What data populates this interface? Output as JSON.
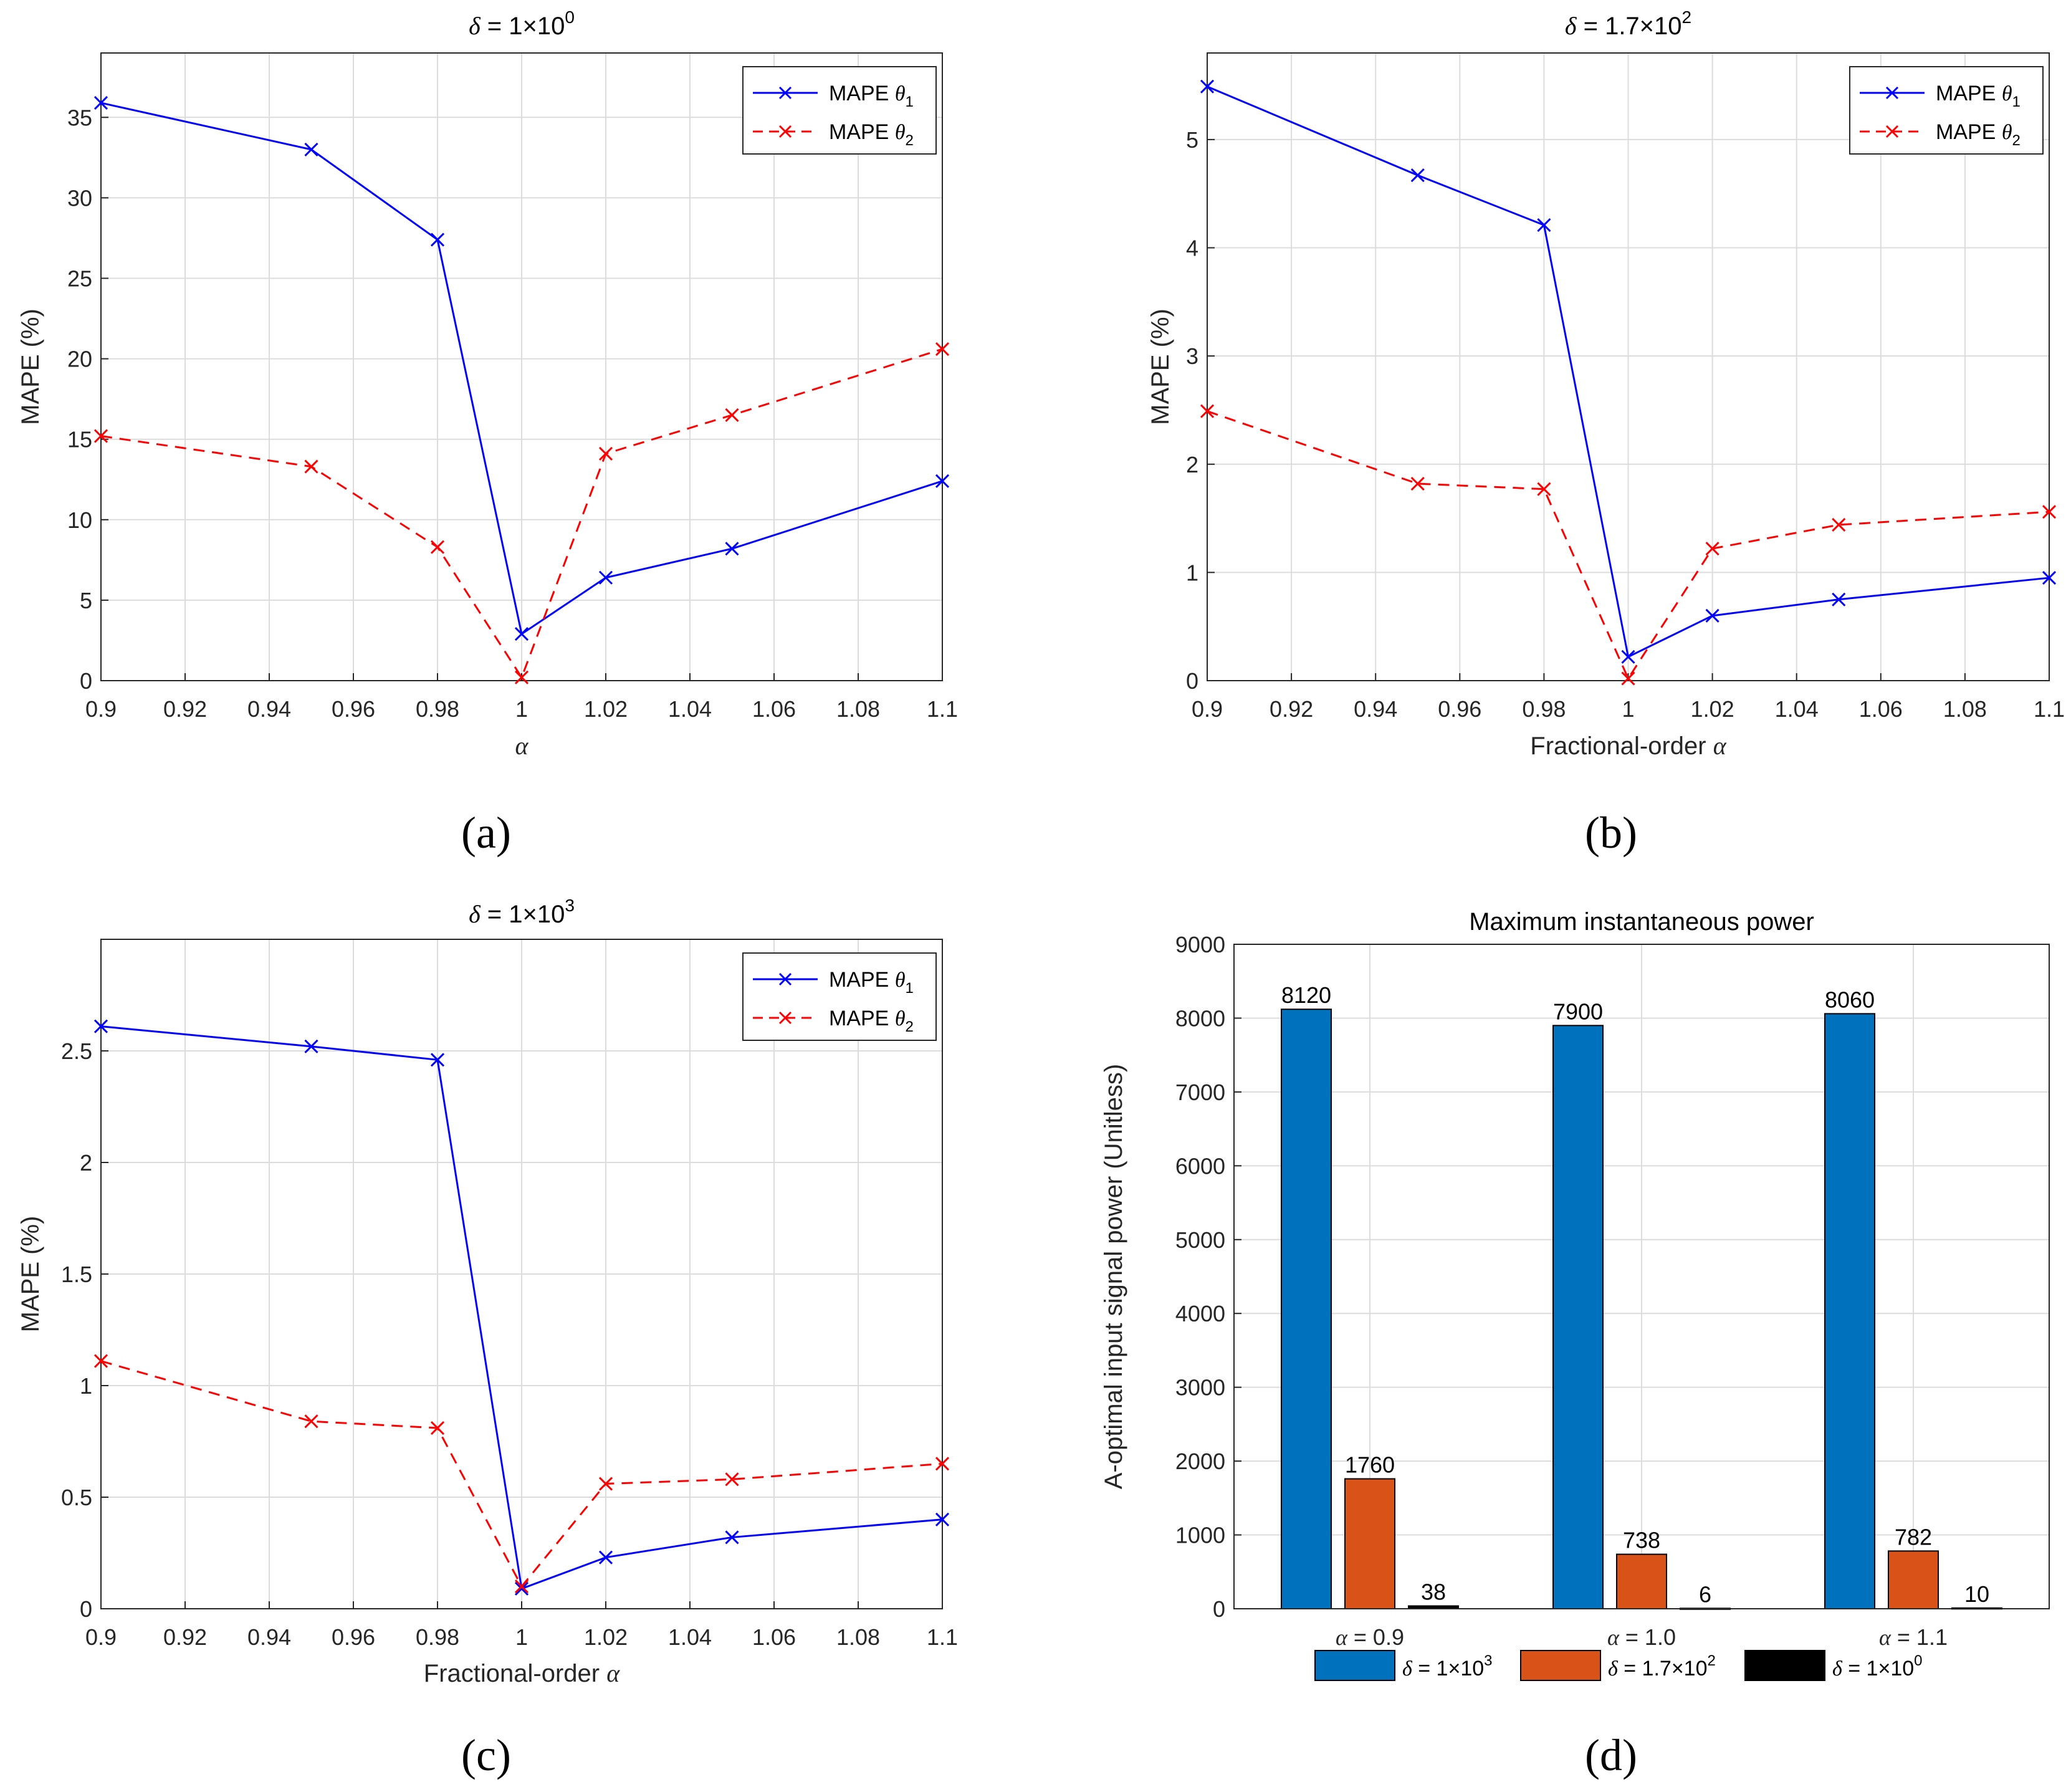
{
  "chart_data": [
    {
      "type": "line",
      "panel": "(a)",
      "title_prefix": "δ",
      "title_value": "= 1×10",
      "title_exp": "0",
      "xlabel": "",
      "xlabel_symbol": "α",
      "ylabel": "MAPE (%)",
      "xlim": [
        0.9,
        1.1
      ],
      "ylim": [
        0,
        39
      ],
      "xticks": [
        "0.9",
        "0.92",
        "0.94",
        "0.96",
        "0.98",
        "1",
        "1.02",
        "1.04",
        "1.06",
        "1.08",
        "1.1"
      ],
      "yticks": [
        "0",
        "5",
        "10",
        "15",
        "20",
        "25",
        "30",
        "35"
      ],
      "x": [
        0.9,
        0.95,
        0.98,
        1.0,
        1.02,
        1.05,
        1.1
      ],
      "series": [
        {
          "name": "MAPE θ1",
          "label": "MAPE",
          "sym": "θ",
          "sub": "1",
          "color": "#0000ff",
          "dash": "",
          "values": [
            35.9,
            33.0,
            27.4,
            2.9,
            6.4,
            8.2,
            12.4
          ]
        },
        {
          "name": "MAPE θ2",
          "label": "MAPE",
          "sym": "θ",
          "sub": "2",
          "color": "#ff0000",
          "dash": "18,12",
          "values": [
            15.2,
            13.3,
            8.3,
            0.2,
            14.1,
            16.5,
            20.6
          ]
        }
      ],
      "legend": "top-right"
    },
    {
      "type": "line",
      "panel": "(b)",
      "title_prefix": "δ",
      "title_value": "= 1.7×10",
      "title_exp": "2",
      "xlabel": "Fractional-order",
      "xlabel_symbol": "α",
      "ylabel": "MAPE (%)",
      "xlim": [
        0.9,
        1.1
      ],
      "ylim": [
        0,
        5.8
      ],
      "xticks": [
        "0.9",
        "0.92",
        "0.94",
        "0.96",
        "0.98",
        "1",
        "1.02",
        "1.04",
        "1.06",
        "1.08",
        "1.1"
      ],
      "yticks": [
        "0",
        "1",
        "2",
        "3",
        "4",
        "5"
      ],
      "x": [
        0.9,
        0.95,
        0.98,
        1.0,
        1.02,
        1.05,
        1.1
      ],
      "series": [
        {
          "name": "MAPE θ1",
          "label": "MAPE",
          "sym": "θ",
          "sub": "1",
          "color": "#0000ff",
          "dash": "",
          "values": [
            5.49,
            4.67,
            4.21,
            0.22,
            0.6,
            0.75,
            0.95
          ]
        },
        {
          "name": "MAPE θ2",
          "label": "MAPE",
          "sym": "θ",
          "sub": "2",
          "color": "#ff0000",
          "dash": "18,12",
          "values": [
            2.49,
            1.82,
            1.77,
            0.02,
            1.22,
            1.44,
            1.56
          ]
        }
      ],
      "legend": "top-right"
    },
    {
      "type": "line",
      "panel": "(c)",
      "title_prefix": "δ",
      "title_value": "= 1×10",
      "title_exp": "3",
      "xlabel": "Fractional-order",
      "xlabel_symbol": "α",
      "ylabel": "MAPE (%)",
      "xlim": [
        0.9,
        1.1
      ],
      "ylim": [
        0,
        3
      ],
      "xticks": [
        "0.9",
        "0.92",
        "0.94",
        "0.96",
        "0.98",
        "1",
        "1.02",
        "1.04",
        "1.06",
        "1.08",
        "1.1"
      ],
      "yticks": [
        "0",
        "0.5",
        "1",
        "1.5",
        "2",
        "2.5"
      ],
      "x": [
        0.9,
        0.95,
        0.98,
        1.0,
        1.02,
        1.05,
        1.1
      ],
      "series": [
        {
          "name": "MAPE θ1",
          "label": "MAPE",
          "sym": "θ",
          "sub": "1",
          "color": "#0000ff",
          "dash": "",
          "values": [
            2.61,
            2.52,
            2.46,
            0.09,
            0.23,
            0.32,
            0.4
          ]
        },
        {
          "name": "MAPE θ2",
          "label": "MAPE",
          "sym": "θ",
          "sub": "2",
          "color": "#ff0000",
          "dash": "18,12",
          "values": [
            1.11,
            0.84,
            0.81,
            0.1,
            0.56,
            0.58,
            0.65
          ]
        }
      ],
      "legend": "top-right"
    },
    {
      "type": "bar",
      "panel": "(d)",
      "title": "Maximum instantaneous power",
      "xlabel": "",
      "ylabel": "A-optimal input signal power (Unitless)",
      "ylim": [
        0,
        9000
      ],
      "yticks": [
        "0",
        "1000",
        "2000",
        "3000",
        "4000",
        "5000",
        "6000",
        "7000",
        "8000",
        "9000"
      ],
      "categories": [
        {
          "sym": "α",
          "text": "= 0.9"
        },
        {
          "sym": "α",
          "text": "= 1.0"
        },
        {
          "sym": "α",
          "text": "= 1.1"
        }
      ],
      "series": [
        {
          "name": "δ = 1×10^3",
          "sym": "δ",
          "text": "= 1×10",
          "exp": "3",
          "color": "#0072bd",
          "values": [
            8120,
            7900,
            8060
          ]
        },
        {
          "name": "δ = 1.7×10^2",
          "sym": "δ",
          "text": "= 1.7×10",
          "exp": "2",
          "color": "#d95319",
          "values": [
            1760,
            738,
            782
          ]
        },
        {
          "name": "δ = 1×10^0",
          "sym": "δ",
          "text": "= 1×10",
          "exp": "0",
          "color": "#000000",
          "values": [
            38,
            6,
            10
          ]
        }
      ],
      "legend": "bottom"
    }
  ]
}
